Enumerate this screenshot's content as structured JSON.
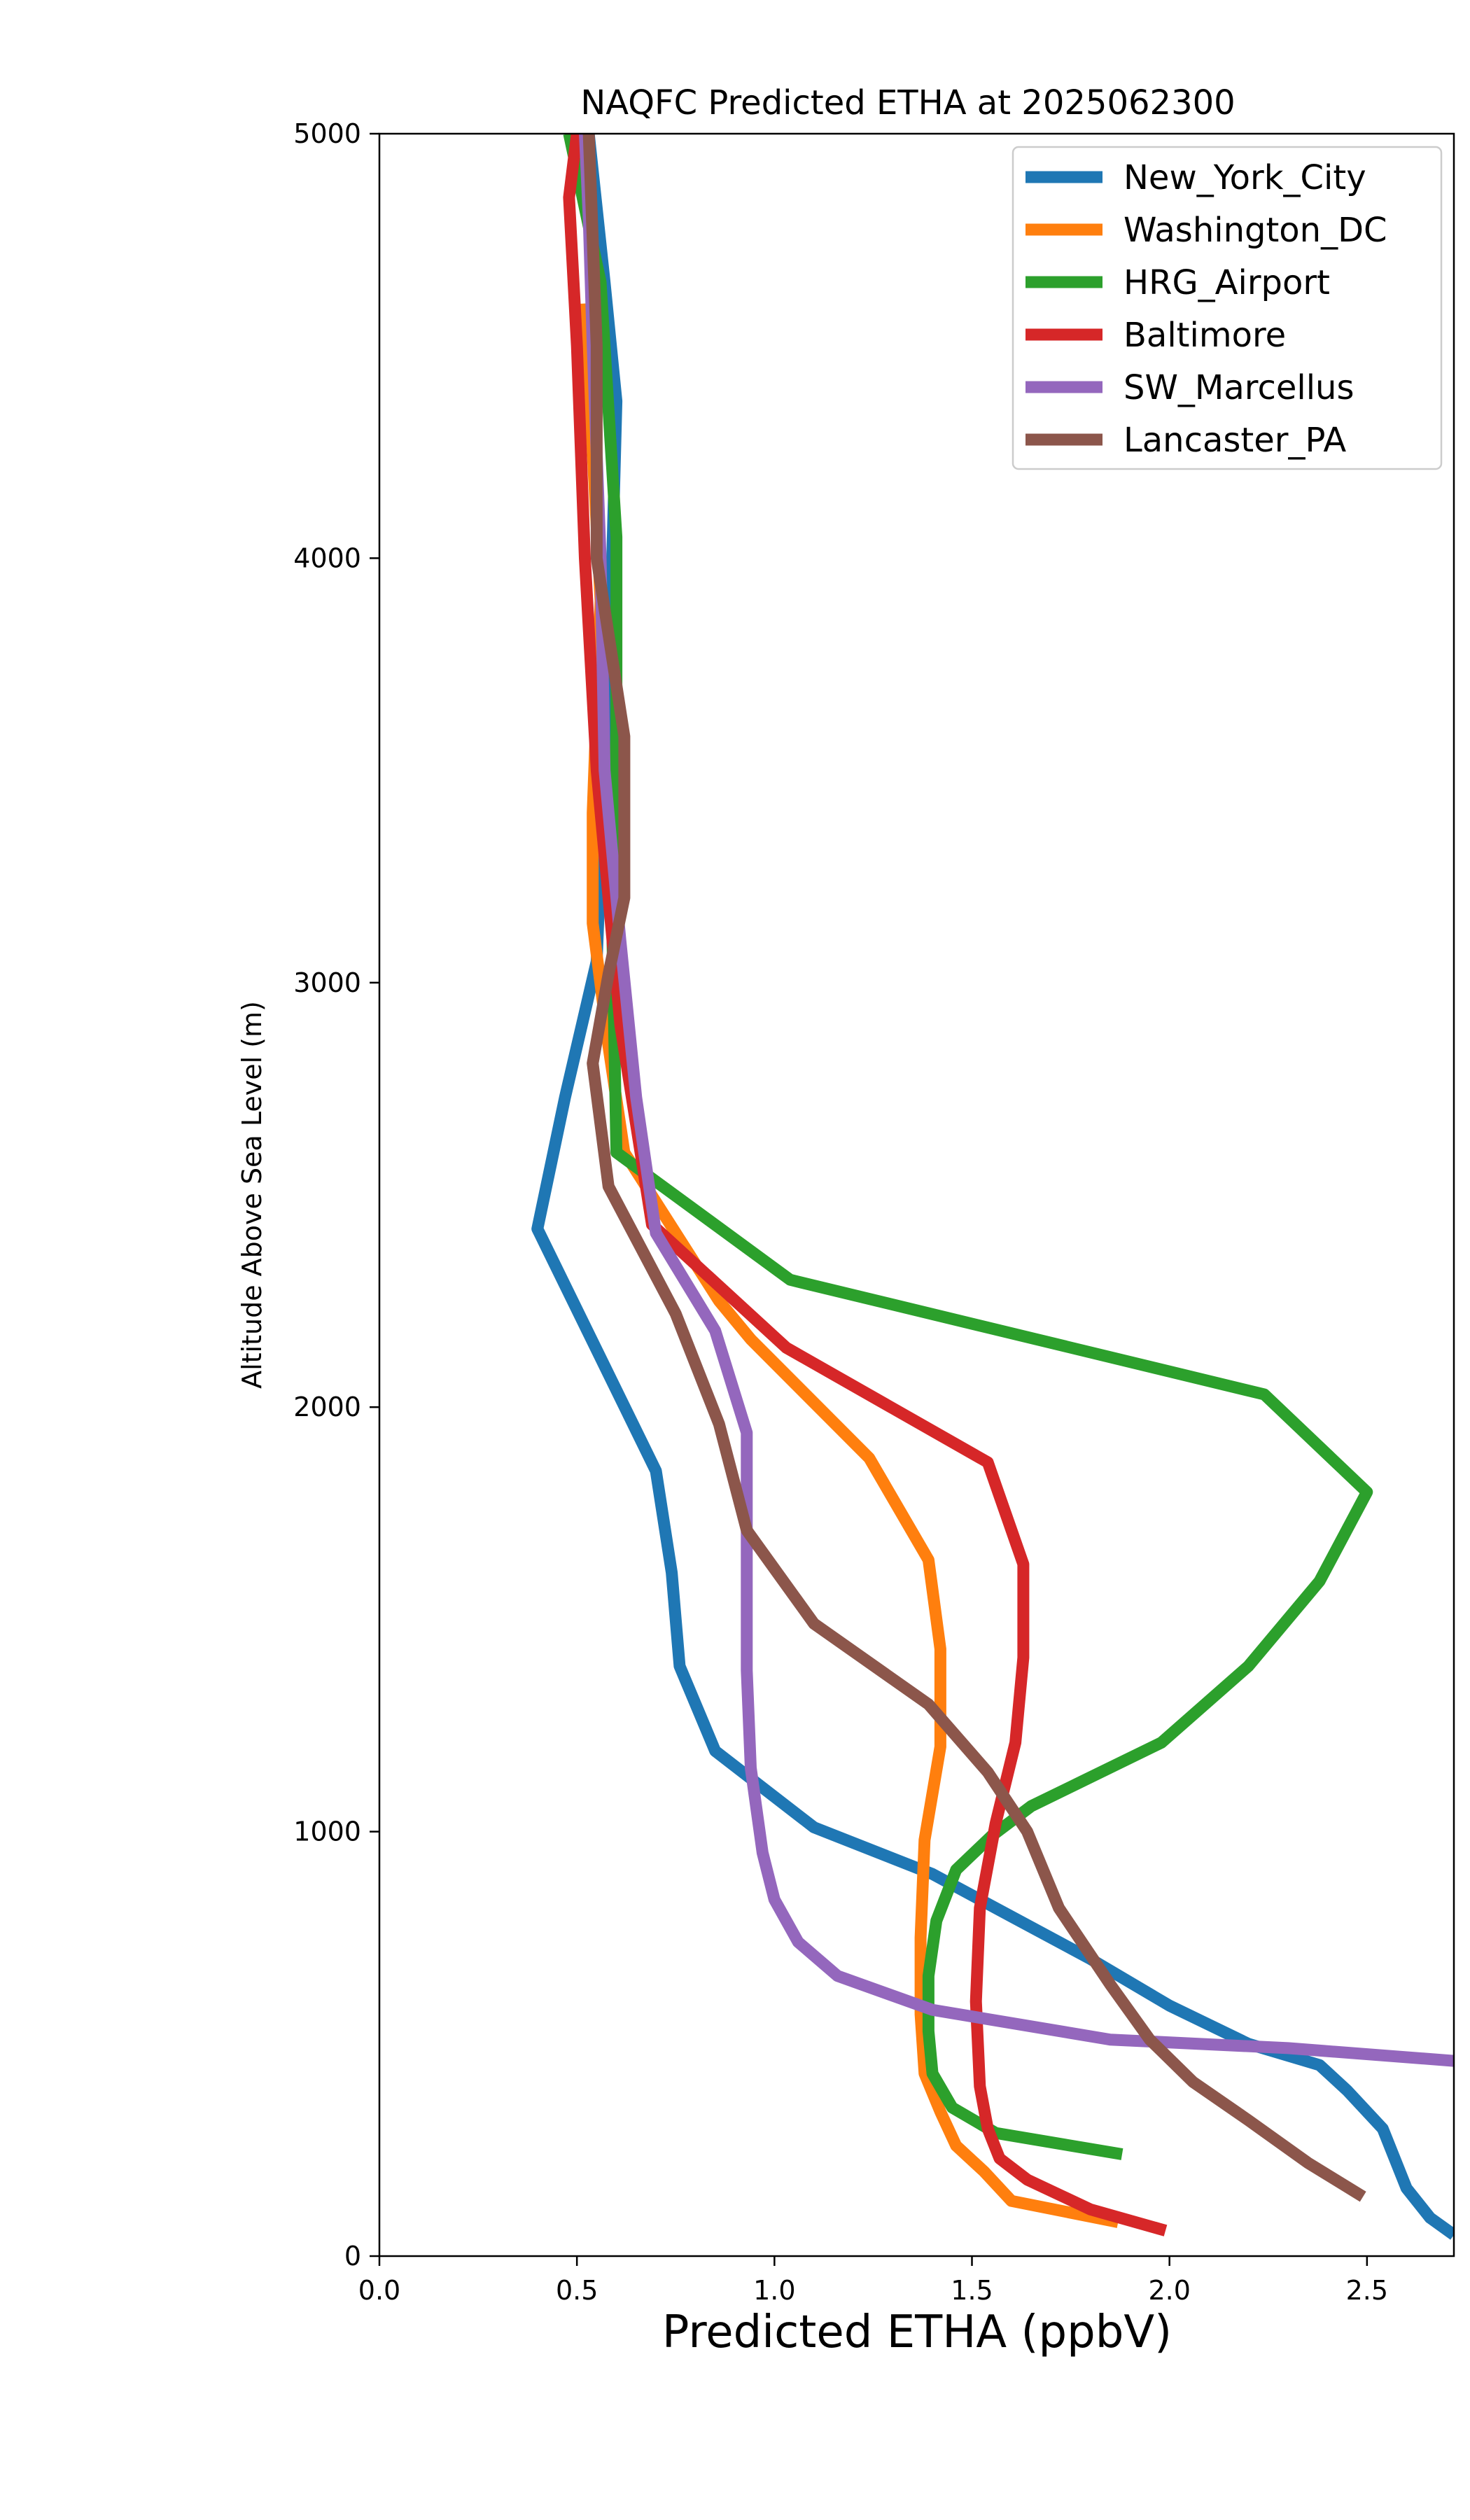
{
  "chart_data": {
    "type": "line",
    "title": "NAQFC Predicted ETHA at 2025062300",
    "xlabel": "Predicted ETHA (ppbV)",
    "ylabel": "Altitude Above Sea Level (m)",
    "xlim": [
      0.0,
      2.72
    ],
    "ylim": [
      0,
      5000
    ],
    "xticks": [
      "0.0",
      "0.5",
      "1.0",
      "1.5",
      "2.0",
      "2.5"
    ],
    "yticks": [
      "0",
      "1000",
      "2000",
      "3000",
      "4000",
      "5000"
    ],
    "grid": false,
    "legend_position": "top-right",
    "series": [
      {
        "name": "New_York_City",
        "color": "#1f77b4",
        "x": [
          2.72,
          2.66,
          2.6,
          2.54,
          2.45,
          2.38,
          2.2,
          2.0,
          1.8,
          1.6,
          1.4,
          1.1,
          0.85,
          0.76,
          0.74,
          0.7,
          0.4,
          0.47,
          0.55,
          0.59,
          0.6,
          0.57,
          0.53
        ],
        "y": [
          50,
          90,
          160,
          300,
          390,
          450,
          500,
          590,
          700,
          800,
          900,
          1010,
          1190,
          1390,
          1610,
          1850,
          2420,
          2730,
          3050,
          4020,
          4370,
          4650,
          5000
        ]
      },
      {
        "name": "Washington_DC",
        "color": "#ff7f0e",
        "x": [
          1.87,
          1.6,
          1.53,
          1.46,
          1.42,
          1.38,
          1.37,
          1.37,
          1.38,
          1.42,
          1.42,
          1.39,
          1.24,
          0.94,
          0.86,
          0.62,
          0.58,
          0.54,
          0.54,
          0.56,
          0.52
        ],
        "y": [
          80,
          130,
          200,
          260,
          340,
          430,
          570,
          750,
          980,
          1200,
          1430,
          1640,
          1880,
          2160,
          2250,
          2600,
          2850,
          3140,
          3400,
          3900,
          4600
        ]
      },
      {
        "name": "HRG_Airport",
        "color": "#2ca02c",
        "x": [
          1.88,
          1.56,
          1.45,
          1.4,
          1.39,
          1.39,
          1.41,
          1.46,
          1.55,
          1.65,
          1.98,
          2.2,
          2.38,
          2.5,
          2.24,
          1.04,
          0.6,
          0.59,
          0.6,
          0.6,
          0.58,
          0.56,
          0.48
        ],
        "y": [
          240,
          290,
          350,
          430,
          530,
          660,
          790,
          910,
          990,
          1060,
          1210,
          1390,
          1590,
          1800,
          2030,
          2300,
          2600,
          3100,
          3600,
          4050,
          4350,
          4650,
          5000
        ]
      },
      {
        "name": "Baltimore",
        "color": "#d62728",
        "x": [
          1.99,
          1.8,
          1.64,
          1.57,
          1.54,
          1.52,
          1.51,
          1.52,
          1.56,
          1.61,
          1.63,
          1.63,
          1.63,
          1.54,
          1.03,
          0.69,
          0.61,
          0.55,
          0.52,
          0.5,
          0.48,
          0.5
        ],
        "y": [
          60,
          110,
          180,
          230,
          300,
          400,
          600,
          820,
          1020,
          1210,
          1410,
          1630,
          1630,
          1870,
          2140,
          2430,
          2900,
          3500,
          4000,
          4500,
          4850,
          5000
        ]
      },
      {
        "name": "SW_Marcellus",
        "color": "#9467bd",
        "x": [
          2.72,
          2.3,
          1.85,
          1.4,
          1.16,
          1.06,
          1.0,
          0.97,
          0.94,
          0.93,
          0.93,
          0.93,
          0.93,
          0.85,
          0.7,
          0.65,
          0.61,
          0.57,
          0.56,
          0.54,
          0.53,
          0.52
        ],
        "y": [
          460,
          490,
          510,
          580,
          660,
          740,
          840,
          950,
          1150,
          1380,
          1710,
          1940,
          1940,
          2180,
          2410,
          2730,
          3100,
          3500,
          4000,
          4500,
          4800,
          5000
        ]
      },
      {
        "name": "Lancaster_PA",
        "color": "#8c564b",
        "x": [
          2.49,
          2.35,
          2.2,
          2.06,
          1.95,
          1.85,
          1.72,
          1.64,
          1.54,
          1.39,
          1.1,
          0.93,
          0.86,
          0.75,
          0.58,
          0.54,
          0.58,
          0.62,
          0.62,
          0.55,
          0.55,
          0.53
        ],
        "y": [
          140,
          220,
          320,
          410,
          510,
          640,
          820,
          1000,
          1140,
          1300,
          1490,
          1710,
          1960,
          2220,
          2520,
          2810,
          3020,
          3200,
          3580,
          4000,
          4500,
          5000
        ]
      }
    ]
  }
}
